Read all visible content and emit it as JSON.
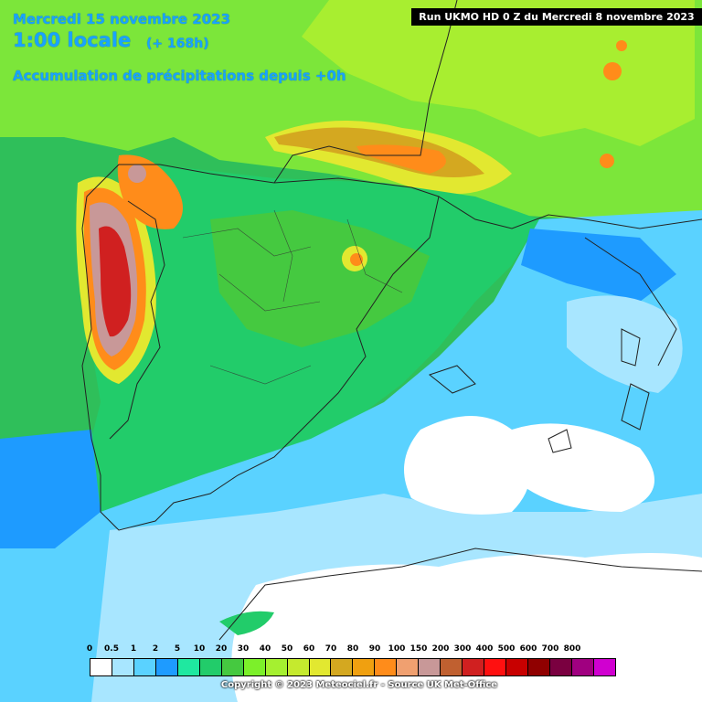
{
  "header": {
    "date": "Mercredi 15 novembre 2023",
    "time": "1:00 locale",
    "lead": "(+ 168h)",
    "subtitle": "Accumulation de précipitations depuis +0h",
    "run": "Run UKMO HD 0 Z du Mercredi 8 novembre 2023"
  },
  "legend": {
    "labels": [
      "0",
      "0.5",
      "1",
      "2",
      "5",
      "10",
      "20",
      "30",
      "40",
      "50",
      "60",
      "70",
      "80",
      "90",
      "100",
      "150",
      "200",
      "300",
      "400",
      "500",
      "600",
      "700",
      "800"
    ],
    "colors": [
      "#ffffff",
      "#a8e6ff",
      "#5ad2ff",
      "#1e9bff",
      "#1fe8a0",
      "#22cc6a",
      "#45c940",
      "#7cf02a",
      "#a5f030",
      "#c5ea2e",
      "#e2e830",
      "#d4a820",
      "#f0a010",
      "#ff8c1a",
      "#f0a070",
      "#c89898",
      "#c06030",
      "#d02020",
      "#ff1010",
      "#c80000",
      "#900000",
      "#7a0040",
      "#a00080",
      "#d000d0"
    ]
  },
  "footer": {
    "copyright": "Copyright © 2023 Meteociel.fr - Source UK Met-Office"
  }
}
